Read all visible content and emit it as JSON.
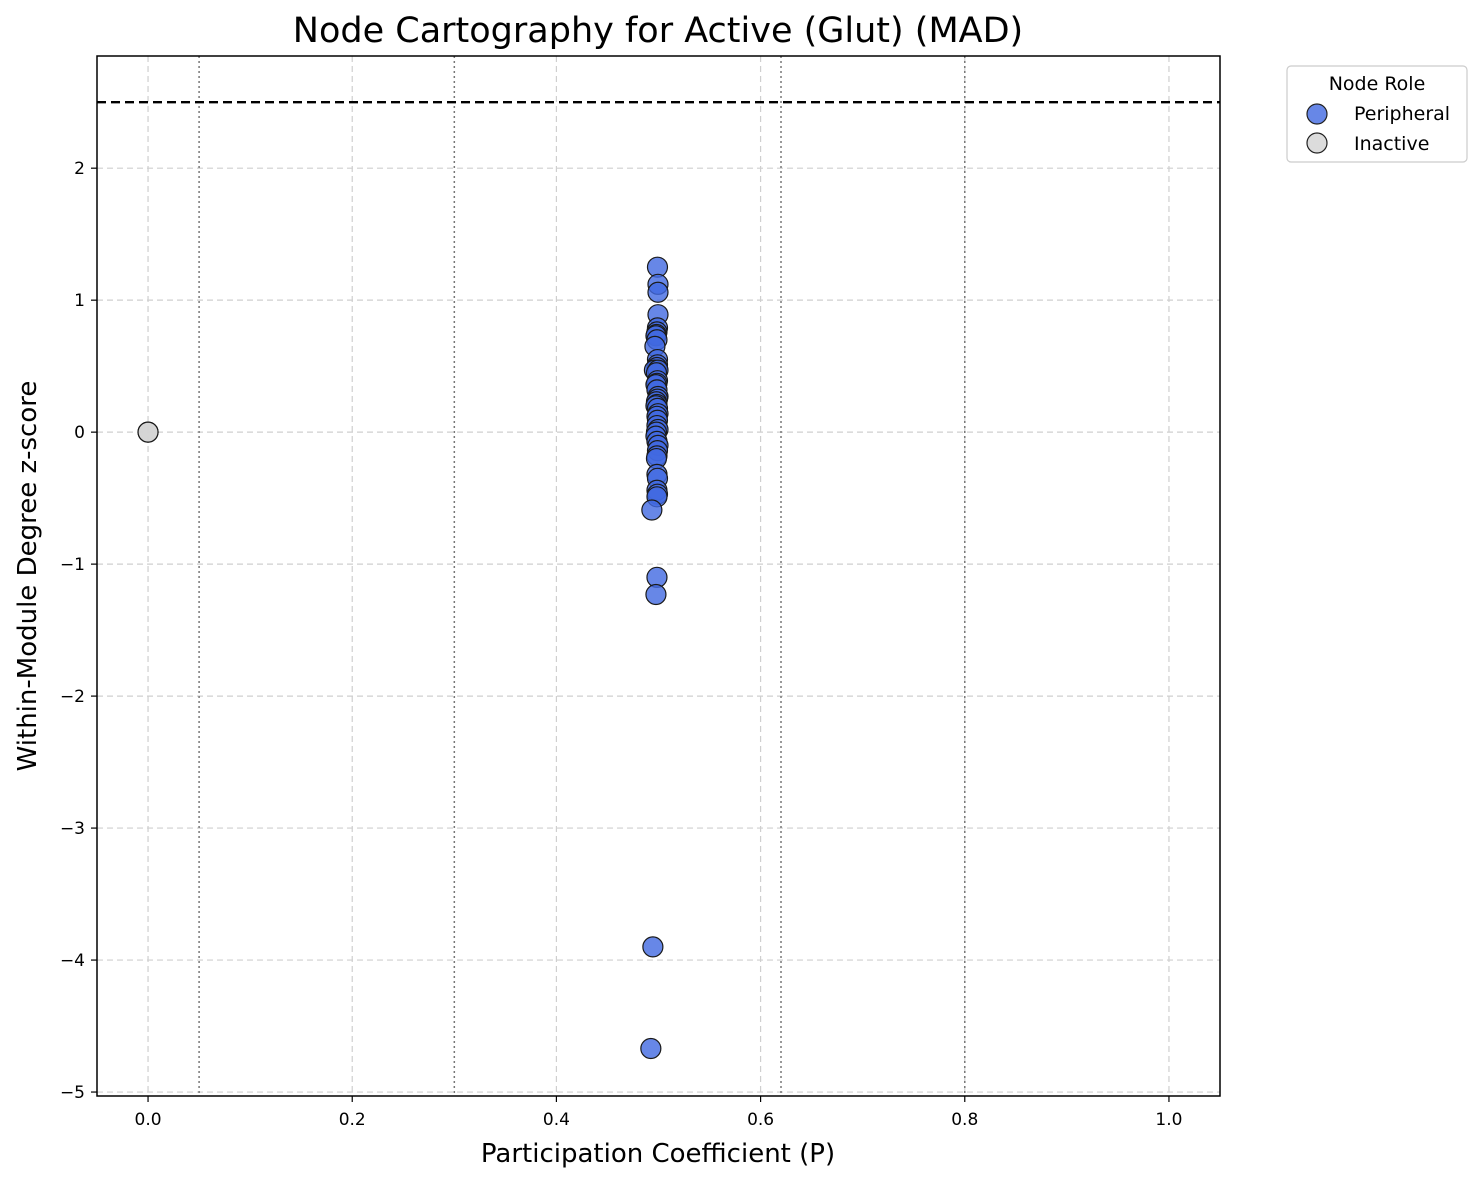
{
  "chart_data": {
    "type": "scatter",
    "title": "Node Cartography for Active (Glut) (MAD)",
    "xlabel": "Participation Coefficient (P)",
    "ylabel": "Within-Module Degree z-score",
    "xlim": [
      -0.05,
      1.05
    ],
    "ylim": [
      -5.03,
      2.85
    ],
    "xticks": [
      0.0,
      0.2,
      0.4,
      0.6,
      0.8,
      1.0
    ],
    "xtick_labels": [
      "0.0",
      "0.2",
      "0.4",
      "0.6",
      "0.8",
      "1.0"
    ],
    "yticks": [
      -5,
      -4,
      -3,
      -2,
      -1,
      0,
      1,
      2
    ],
    "ytick_labels": [
      "−5",
      "−4",
      "−3",
      "−2",
      "−1",
      "0",
      "1",
      "2"
    ],
    "grid": true,
    "hub_threshold_z": 2.5,
    "role_boundaries_p": [
      0.05,
      0.3,
      0.62,
      0.8
    ],
    "legend": {
      "title": "Node Role",
      "placement": "outside-top-right",
      "entries": [
        {
          "label": "Peripheral",
          "color": "#4169e1"
        },
        {
          "label": "Inactive",
          "color": "#d3d3d3"
        }
      ]
    },
    "series": [
      {
        "name": "Peripheral",
        "color": "#4169e1",
        "points": [
          [
            0.499,
            1.25
          ],
          [
            0.4995,
            1.12
          ],
          [
            0.4995,
            1.06
          ],
          [
            0.4995,
            0.89
          ],
          [
            0.499,
            0.79
          ],
          [
            0.4985,
            0.76
          ],
          [
            0.498,
            0.74
          ],
          [
            0.4975,
            0.73
          ],
          [
            0.4985,
            0.7
          ],
          [
            0.4965,
            0.65
          ],
          [
            0.499,
            0.55
          ],
          [
            0.499,
            0.51
          ],
          [
            0.4985,
            0.49
          ],
          [
            0.496,
            0.47
          ],
          [
            0.4995,
            0.47
          ],
          [
            0.498,
            0.45
          ],
          [
            0.499,
            0.39
          ],
          [
            0.4985,
            0.37
          ],
          [
            0.4975,
            0.36
          ],
          [
            0.4985,
            0.32
          ],
          [
            0.4995,
            0.27
          ],
          [
            0.499,
            0.25
          ],
          [
            0.498,
            0.23
          ],
          [
            0.4985,
            0.21
          ],
          [
            0.4975,
            0.2
          ],
          [
            0.499,
            0.18
          ],
          [
            0.4995,
            0.14
          ],
          [
            0.4985,
            0.12
          ],
          [
            0.499,
            0.09
          ],
          [
            0.4985,
            0.05
          ],
          [
            0.4995,
            0.02
          ],
          [
            0.498,
            0.0
          ],
          [
            0.4975,
            -0.03
          ],
          [
            0.4985,
            -0.07
          ],
          [
            0.4995,
            -0.1
          ],
          [
            0.499,
            -0.14
          ],
          [
            0.4985,
            -0.18
          ],
          [
            0.498,
            -0.2
          ],
          [
            0.4985,
            -0.32
          ],
          [
            0.499,
            -0.35
          ],
          [
            0.4985,
            -0.44
          ],
          [
            0.499,
            -0.47
          ],
          [
            0.4985,
            -0.49
          ],
          [
            0.4935,
            -0.59
          ],
          [
            0.4985,
            -1.1
          ],
          [
            0.4975,
            -1.23
          ],
          [
            0.4945,
            -3.9
          ],
          [
            0.4925,
            -4.67
          ]
        ]
      },
      {
        "name": "Inactive",
        "color": "#d3d3d3",
        "points": [
          [
            0.0,
            0.0
          ],
          [
            0.0,
            0.0
          ]
        ]
      }
    ]
  }
}
